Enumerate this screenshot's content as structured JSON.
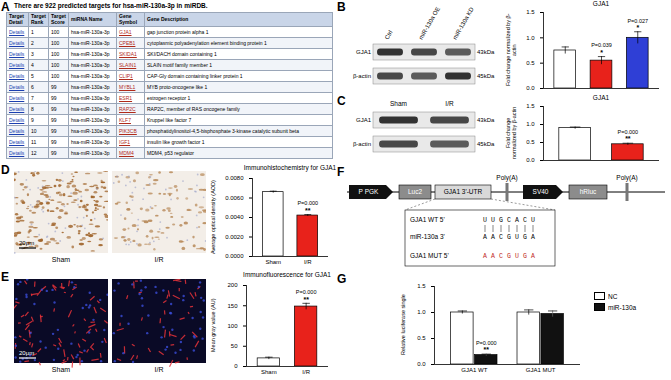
{
  "panels": {
    "A": {
      "label": "A",
      "title": "There are 922 predicted targets for hsa-miR-130a-3p in miRDB.",
      "table": {
        "columns": [
          "Target Detail",
          "Target Rank",
          "Target Score",
          "miRNA Name",
          "Gene Symbol",
          "Gene Description"
        ],
        "rows": [
          [
            "Details",
            1,
            100,
            "hsa-miR-130a-3p",
            "GJA1",
            "gap junction protein alpha 1"
          ],
          [
            "Details",
            2,
            100,
            "hsa-miR-130a-3p",
            "CPEB1",
            "cytoplasmic polyadenylation element binding protein 1"
          ],
          [
            "Details",
            3,
            100,
            "hsa-miR-130a-3p",
            "SKIDA1",
            "SKI/DACH domain containing 1"
          ],
          [
            "Details",
            4,
            100,
            "hsa-miR-130a-3p",
            "SLAIN1",
            "SLAIN motif family member 1"
          ],
          [
            "Details",
            5,
            100,
            "hsa-miR-130a-3p",
            "CLIP1",
            "CAP-Gly domain containing linker protein 1"
          ],
          [
            "Details",
            6,
            99,
            "hsa-miR-130a-3p",
            "MYBL1",
            "MYB proto-oncogene like 1"
          ],
          [
            "Details",
            7,
            99,
            "hsa-miR-130a-3p",
            "ESR1",
            "estrogen receptor 1"
          ],
          [
            "Details",
            8,
            99,
            "hsa-miR-130a-3p",
            "RAP2C",
            "RAP2C, member of RAS oncogene family"
          ],
          [
            "Details",
            9,
            99,
            "hsa-miR-130a-3p",
            "KLF7",
            "Kruppel like factor 7"
          ],
          [
            "Details",
            10,
            99,
            "hsa-miR-130a-3p",
            "PIK3CB",
            "phosphatidylinositol-4,5-bisphosphate 3-kinase catalytic subunit beta"
          ],
          [
            "Details",
            11,
            99,
            "hsa-miR-130a-3p",
            "IGF1",
            "insulin like growth factor 1"
          ],
          [
            "Details",
            12,
            99,
            "hsa-miR-130a-3p",
            "MDM4",
            "MDM4, p53 regulator"
          ]
        ]
      }
    },
    "B": {
      "label": "B",
      "blot": {
        "lanes": [
          "Ctrl",
          "miR-130a OE",
          "miR-130a KD"
        ],
        "rows": [
          {
            "name": "GJA1",
            "size": "43kDa"
          },
          {
            "name": "β-actin",
            "size": "45kDa"
          }
        ]
      }
    },
    "C": {
      "label": "C",
      "blot": {
        "lanes": [
          "Sham",
          "I/R"
        ],
        "rows": [
          {
            "name": "GJA1",
            "size": "43kDa"
          },
          {
            "name": "β-actin",
            "size": "45kDa"
          }
        ]
      }
    },
    "D": {
      "label": "D",
      "images": [
        "Sham",
        "I/R"
      ],
      "scale_bar": "20μm"
    },
    "E": {
      "label": "E",
      "images": [
        "Sham",
        "I/R"
      ],
      "scale_bar": "20μm"
    },
    "F": {
      "label": "F",
      "construct": [
        "P PGK",
        "Luc2",
        "GJA1 3'-UTR",
        "Poly(A)",
        "SV40",
        "hRluc",
        "Poly(A)"
      ],
      "sequences": [
        {
          "name": "GJA1 WT 5'",
          "sequence": "UUGCACU"
        },
        {
          "name": "miR-130a 3'",
          "sequence": "AACGUGA"
        },
        {
          "name": "GJA1 MUT 5'",
          "sequence": "AACGUGA"
        }
      ]
    },
    "G": {
      "label": "G"
    }
  },
  "chart_data": [
    {
      "panel": "B",
      "type": "bar",
      "title": "GJA1",
      "y_label": "Fold change normalized by β-actin",
      "categories": [
        "Ctrl",
        "miR-130a OE",
        "miR-130a KD"
      ],
      "values": [
        0.75,
        0.55,
        1.0
      ],
      "errors": [
        0.07,
        0.08,
        0.12
      ],
      "colors": [
        "#ffffff",
        "#e8221b",
        "#2f3fd6"
      ],
      "ylim": [
        0,
        1.5
      ],
      "yticks": [
        {
          "value": 0,
          "label": "0.0"
        },
        {
          "value": 0.5,
          "label": "0.5"
        },
        {
          "value": 1,
          "label": "1.0"
        },
        {
          "value": 1.5,
          "label": "1.5"
        }
      ],
      "tick_labels": "y",
      "annotations": [
        {
          "x": "miR-130a OE",
          "text": "P=0.039",
          "sig": "*"
        },
        {
          "x": "miR-130a KD",
          "text": "P=0.027",
          "sig": "*"
        }
      ]
    },
    {
      "panel": "C",
      "type": "bar",
      "title": "GJA1",
      "y_label": "Fold change normalized by β-actin",
      "categories": [
        "Sham",
        "I/R"
      ],
      "values": [
        0.9,
        0.45
      ],
      "errors": [
        0.03,
        0.03
      ],
      "colors": [
        "#ffffff",
        "#e8221b"
      ],
      "ylim": [
        0,
        1.5
      ],
      "yticks": [
        {
          "value": 0,
          "label": "0.0"
        },
        {
          "value": 0.5,
          "label": "0.5"
        },
        {
          "value": 1,
          "label": "1.0"
        },
        {
          "value": 1.5,
          "label": "1.5"
        }
      ],
      "tick_labels": "y",
      "annotations": [
        {
          "x": "I/R",
          "text": "P=0.000",
          "sig": "**"
        }
      ]
    },
    {
      "panel": "D",
      "type": "bar",
      "title": "Immunohistochemistry for GJA1",
      "y_label": "Average optical density (AOD)",
      "categories": [
        "Sham",
        "I/R"
      ],
      "values": [
        0.0066,
        0.0042
      ],
      "errors": [
        0.0001,
        0.0001
      ],
      "colors": [
        "#ffffff",
        "#e8221b"
      ],
      "ylim": [
        0,
        0.008
      ],
      "yticks": [
        {
          "value": 0,
          "label": "0.0000"
        },
        {
          "value": 0.002,
          "label": "0.0020"
        },
        {
          "value": 0.004,
          "label": "0.0040"
        },
        {
          "value": 0.006,
          "label": "0.0060"
        },
        {
          "value": 0.008,
          "label": "0.0080"
        }
      ],
      "annotations": [
        {
          "x": "I/R",
          "text": "P=0.000",
          "sig": "**"
        }
      ]
    },
    {
      "panel": "E",
      "type": "bar",
      "title": "Immunofluorescence for GJA1",
      "y_label": "Mean gray value (AU)",
      "categories": [
        "Sham",
        "I/R"
      ],
      "values": [
        20,
        148
      ],
      "errors": [
        3,
        8
      ],
      "colors": [
        "#ffffff",
        "#e8221b"
      ],
      "ylim": [
        0,
        200
      ],
      "yticks": [
        0,
        50,
        100,
        150,
        200
      ],
      "annotations": [
        {
          "x": "I/R",
          "text": "P=0.000",
          "sig": "**"
        }
      ]
    },
    {
      "panel": "G",
      "type": "bar",
      "y_label": "Relative luciferase single",
      "categories": [
        "GJA1 WT",
        "GJA1 MUT"
      ],
      "series": [
        {
          "name": "NC",
          "color": "#ffffff",
          "values": [
            1.0,
            1.0
          ],
          "errors": [
            0.03,
            0.05
          ]
        },
        {
          "name": "miR-130a",
          "color": "#111111",
          "values": [
            0.18,
            0.97
          ],
          "errors": [
            0.02,
            0.06
          ]
        }
      ],
      "ylim": [
        0,
        1.5
      ],
      "yticks": [
        {
          "value": 0,
          "label": "0.0"
        },
        {
          "value": 0.5,
          "label": "0.5"
        },
        {
          "value": 1,
          "label": "1.0"
        },
        {
          "value": 1.5,
          "label": "1.5"
        }
      ],
      "legend": "right",
      "annotations": [
        {
          "x": "GJA1 WT",
          "series": "miR-130a",
          "text": "P=0.000",
          "sig": "**"
        }
      ]
    }
  ]
}
